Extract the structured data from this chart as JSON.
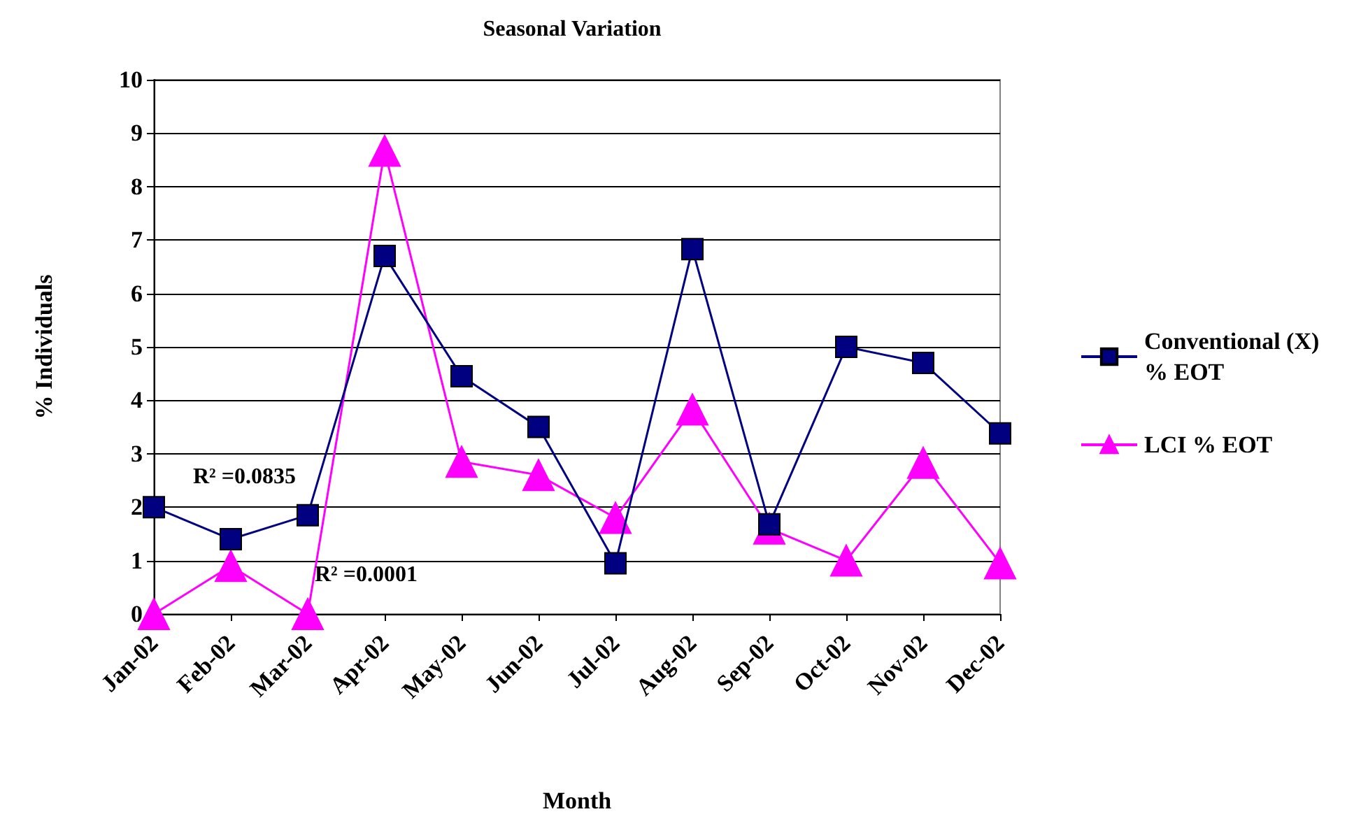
{
  "chart_data": {
    "type": "line",
    "title": "Seasonal Variation",
    "xlabel": "Month",
    "ylabel": "% Individuals",
    "categories": [
      "Jan-02",
      "Feb-02",
      "Mar-02",
      "Apr-02",
      "May-02",
      "Jun-02",
      "Jul-02",
      "Aug-02",
      "Sep-02",
      "Oct-02",
      "Nov-02",
      "Dec-02"
    ],
    "series": [
      {
        "name": "Conventional (X) % EOT",
        "color": "#000080",
        "marker": "square",
        "values": [
          2.0,
          1.4,
          1.85,
          6.7,
          4.45,
          3.5,
          0.95,
          6.83,
          1.68,
          5.0,
          4.7,
          3.38
        ]
      },
      {
        "name": "LCI % EOT",
        "color": "#ff00ff",
        "marker": "triangle",
        "values": [
          0,
          0.9,
          0,
          8.67,
          2.85,
          2.6,
          1.8,
          3.83,
          1.6,
          1.0,
          2.83,
          0.95
        ]
      }
    ],
    "ylim": [
      0,
      10
    ],
    "yticks": [
      0,
      1,
      2,
      3,
      4,
      5,
      6,
      7,
      8,
      9,
      10
    ],
    "grid": "y",
    "legend": "right",
    "annotations": [
      "R² =0.0835",
      "R² =0.0001"
    ]
  }
}
